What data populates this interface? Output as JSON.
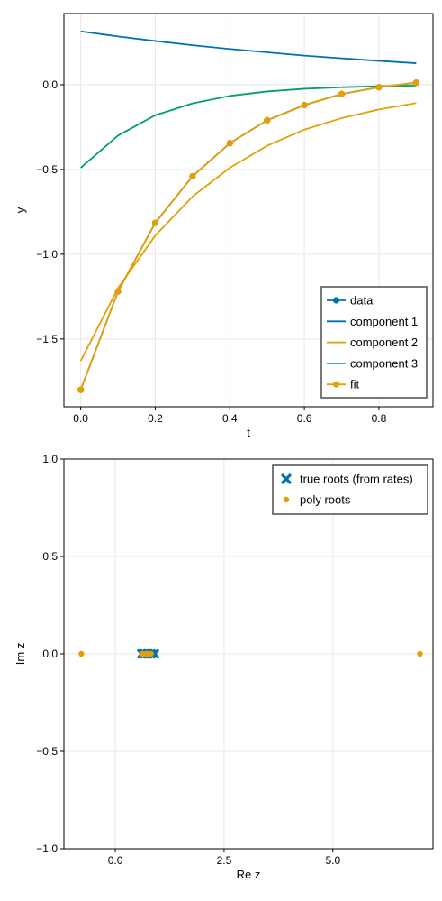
{
  "colors": {
    "blue": "#0072b2",
    "orange": "#e69f00",
    "green": "#009e73",
    "grid": "#e8e8e8",
    "frame": "#000000"
  },
  "chart_data": [
    {
      "type": "line",
      "xlabel": "t",
      "ylabel": "y",
      "xlim": [
        -0.045,
        0.945
      ],
      "ylim": [
        -1.9,
        0.42
      ],
      "xticks": [
        0.0,
        0.2,
        0.4,
        0.6,
        0.8
      ],
      "xtick_labels": [
        "0.0",
        "0.2",
        "0.4",
        "0.6",
        "0.8"
      ],
      "yticks": [
        0.0,
        -0.5,
        -1.0,
        -1.5
      ],
      "ytick_labels": [
        "0.0",
        "−0.5",
        "−1.0",
        "−1.5"
      ],
      "grid": true,
      "legend_position": "bottom-right",
      "x": [
        0.0,
        0.1,
        0.2,
        0.3,
        0.4,
        0.5,
        0.6,
        0.7,
        0.8,
        0.9
      ],
      "series": [
        {
          "name": "data",
          "color": "#0072b2",
          "markers": true,
          "values": [
            -1.8,
            -1.22,
            -0.815,
            -0.54,
            -0.345,
            -0.21,
            -0.12,
            -0.055,
            -0.015,
            0.012
          ]
        },
        {
          "name": "component 1",
          "color": "#0072b2",
          "markers": false,
          "values": [
            0.315,
            0.285,
            0.258,
            0.233,
            0.211,
            0.191,
            0.172,
            0.156,
            0.141,
            0.127
          ]
        },
        {
          "name": "component 2",
          "color": "#e69f00",
          "markers": false,
          "values": [
            -1.63,
            -1.2,
            -0.89,
            -0.66,
            -0.49,
            -0.36,
            -0.265,
            -0.197,
            -0.146,
            -0.108
          ]
        },
        {
          "name": "component 3",
          "color": "#009e73",
          "markers": false,
          "values": [
            -0.49,
            -0.3,
            -0.18,
            -0.11,
            -0.066,
            -0.04,
            -0.024,
            -0.015,
            -0.009,
            -0.005
          ]
        },
        {
          "name": "fit",
          "color": "#e69f00",
          "markers": true,
          "values": [
            -1.8,
            -1.22,
            -0.815,
            -0.54,
            -0.345,
            -0.21,
            -0.12,
            -0.055,
            -0.015,
            0.012
          ]
        }
      ]
    },
    {
      "type": "scatter",
      "xlabel": "Re z",
      "ylabel": "Im z",
      "xlim": [
        -1.18,
        7.3
      ],
      "ylim": [
        -1.0,
        1.0
      ],
      "xticks": [
        0.0,
        2.5,
        5.0
      ],
      "xtick_labels": [
        "0.0",
        "2.5",
        "5.0"
      ],
      "yticks": [
        1.0,
        0.5,
        0.0,
        -0.5,
        -1.0
      ],
      "ytick_labels": [
        "1.0",
        "0.5",
        "0.0",
        "−0.5",
        "−1.0"
      ],
      "grid": true,
      "legend_position": "top-right",
      "series": [
        {
          "name": "true roots (from rates)",
          "color": "#0072b2",
          "marker": "x",
          "x": [
            0.61,
            0.67,
            0.74,
            0.82,
            0.9
          ],
          "y": [
            0,
            0,
            0,
            0,
            0
          ]
        },
        {
          "name": "poly roots",
          "color": "#e69f00",
          "marker": "circle",
          "x": [
            -0.78,
            0.61,
            0.67,
            0.74,
            0.82,
            7.0
          ],
          "y": [
            0,
            0,
            0,
            0,
            0,
            0
          ]
        }
      ]
    }
  ]
}
